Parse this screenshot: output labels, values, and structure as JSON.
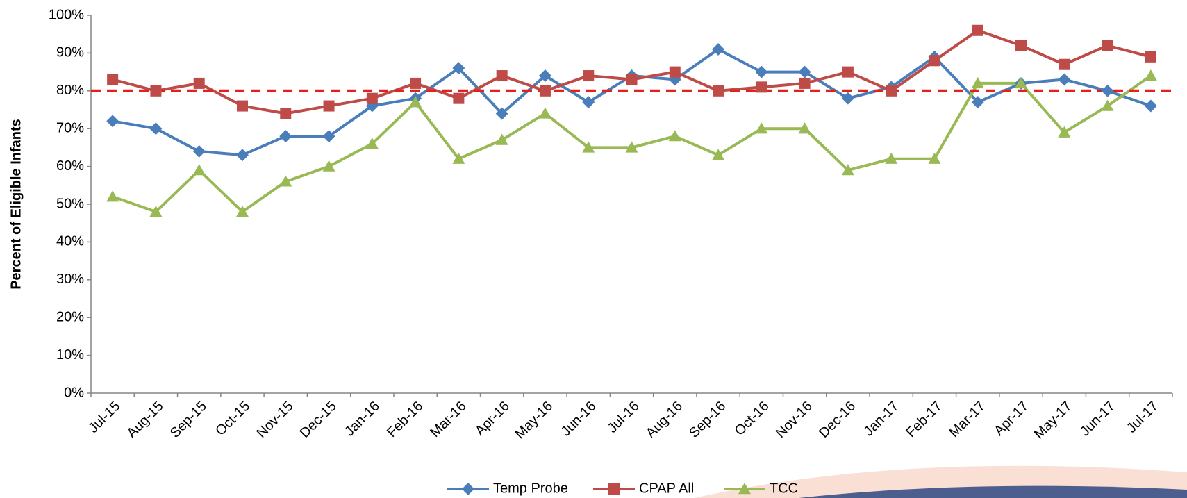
{
  "chart_data": {
    "type": "line",
    "y_label": "Percent of Eligible Infants",
    "categories": [
      "Jul-15",
      "Aug-15",
      "Sep-15",
      "Oct-15",
      "Nov-15",
      "Dec-15",
      "Jan-16",
      "Feb-16",
      "Mar-16",
      "Apr-16",
      "May-16",
      "Jun-16",
      "Jul-16",
      "Aug-16",
      "Sep-16",
      "Oct-16",
      "Nov-16",
      "Dec-16",
      "Jan-17",
      "Feb-17",
      "Mar-17",
      "Apr-17",
      "May-17",
      "Jun-17",
      "Jul-17"
    ],
    "series": [
      {
        "name": "Temp Probe",
        "color": "#4a7ebb",
        "marker": "diamond",
        "values": [
          72,
          70,
          64,
          63,
          68,
          68,
          76,
          78,
          86,
          74,
          84,
          77,
          84,
          83,
          91,
          85,
          85,
          78,
          81,
          89,
          77,
          82,
          83,
          80,
          76
        ]
      },
      {
        "name": "CPAP All",
        "color": "#be4b48",
        "marker": "square",
        "values": [
          83,
          80,
          82,
          76,
          74,
          76,
          78,
          82,
          78,
          84,
          80,
          84,
          83,
          85,
          80,
          81,
          82,
          85,
          80,
          88,
          96,
          92,
          87,
          92,
          89
        ]
      },
      {
        "name": "TCC",
        "color": "#98b954",
        "marker": "triangle",
        "values": [
          52,
          48,
          59,
          48,
          56,
          60,
          66,
          77,
          62,
          67,
          74,
          65,
          65,
          68,
          63,
          70,
          70,
          59,
          62,
          62,
          82,
          82,
          69,
          76,
          84
        ]
      }
    ],
    "reference_line": {
      "value": 80,
      "color": "#e3211c"
    },
    "ylim": [
      0,
      100
    ],
    "yticks": [
      {
        "value": 0,
        "label": "0%"
      },
      {
        "value": 10,
        "label": "10%"
      },
      {
        "value": 20,
        "label": "20%"
      },
      {
        "value": 30,
        "label": "30%"
      },
      {
        "value": 40,
        "label": "40%"
      },
      {
        "value": 50,
        "label": "50%"
      },
      {
        "value": 60,
        "label": "60%"
      },
      {
        "value": 70,
        "label": "70%"
      },
      {
        "value": 80,
        "label": "80%"
      },
      {
        "value": 90,
        "label": "90%"
      },
      {
        "value": 100,
        "label": "100%"
      }
    ],
    "grid": false,
    "legend": "bottom"
  }
}
